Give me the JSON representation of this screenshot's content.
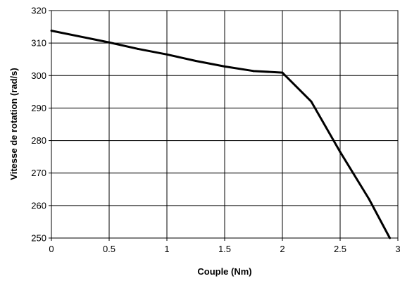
{
  "chart_data": {
    "type": "line",
    "title": "",
    "xlabel": "Couple (Nm)",
    "ylabel": "Vitesse de rotation (rad/s)",
    "xlim": [
      0,
      3
    ],
    "ylim": [
      250,
      320
    ],
    "xticks": [
      "0",
      "0.5",
      "1",
      "1.5",
      "2",
      "2.5",
      "3"
    ],
    "yticks": [
      "250",
      "260",
      "270",
      "280",
      "290",
      "300",
      "310",
      "320"
    ],
    "grid": true,
    "legend": "none",
    "series": [
      {
        "color": "#000000",
        "x": [
          0,
          0.5,
          0.75,
          1.0,
          1.25,
          1.5,
          1.75,
          2.0,
          2.25,
          2.5,
          2.75,
          2.93
        ],
        "y": [
          313.8,
          310.2,
          308.2,
          306.5,
          304.5,
          302.8,
          301.4,
          300.9,
          292.0,
          276.5,
          262.0,
          250.0
        ]
      }
    ]
  }
}
